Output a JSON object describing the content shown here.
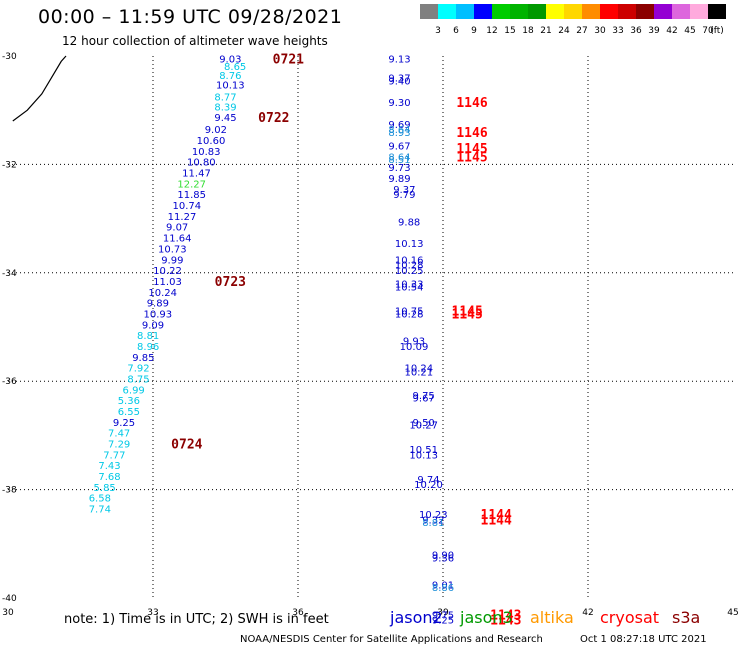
{
  "header": {
    "title": "00:00 – 11:59 UTC 09/28/2021",
    "subtitle": "12 hour collection of altimeter wave heights"
  },
  "colorbar": {
    "colors": [
      "#808080",
      "#00ffff",
      "#00bfff",
      "#0000ff",
      "#00cd00",
      "#00b300",
      "#009900",
      "#ffff00",
      "#ffd700",
      "#ff8c00",
      "#ff0000",
      "#cd0000",
      "#8b0000",
      "#9400d3",
      "#dd66dd",
      "#ffaadd",
      "#000000"
    ],
    "labels": [
      "3",
      "6",
      "9",
      "12",
      "15",
      "18",
      "21",
      "24",
      "27",
      "30",
      "33",
      "36",
      "39",
      "42",
      "45",
      "70",
      "(ft)"
    ]
  },
  "note": "note: 1) Time is in UTC; 2) SWH is in feet",
  "legend": [
    {
      "label": "jason2",
      "color": "#0000cc"
    },
    {
      "label": "jason3",
      "color": "#009900"
    },
    {
      "label": "altika",
      "color": "#ff9900"
    },
    {
      "label": "cryosat",
      "color": "#ff0000"
    },
    {
      "label": "s3a",
      "color": "#8b0000"
    }
  ],
  "footer": "NOAA/NESDIS Center for Satellite Applications and Research",
  "footer_time": "Oct  1 08:27:18 UTC 2021",
  "chart_data": {
    "type": "scatter",
    "xlim": [
      30,
      45
    ],
    "ylim": [
      -40,
      -30
    ],
    "xticks": [
      30,
      33,
      36,
      39,
      42,
      45
    ],
    "yticks": [
      -30,
      -32,
      -34,
      -36,
      -38,
      -40
    ],
    "grid": true,
    "colors": {
      "c6": "#00c8e6",
      "c9": "#1e90d8",
      "c12": "#0000cc",
      "c15": "#33dd33",
      "s3a": "#8b0000",
      "cryosat": "#ff0000",
      "coast": "#000000"
    },
    "coastline": [
      [
        30.1,
        -31.2
      ],
      [
        30.4,
        -31.0
      ],
      [
        30.7,
        -30.7
      ],
      [
        30.9,
        -30.4
      ],
      [
        31.1,
        -30.1
      ],
      [
        31.2,
        -30.0
      ]
    ],
    "points": [
      {
        "x": 34.6,
        "y": -30.05,
        "v": "9.03",
        "c": "c12"
      },
      {
        "x": 34.7,
        "y": -30.18,
        "v": "8.65",
        "c": "c6"
      },
      {
        "x": 34.6,
        "y": -30.35,
        "v": "8.76",
        "c": "c6"
      },
      {
        "x": 34.6,
        "y": -30.53,
        "v": "10.13",
        "c": "c12"
      },
      {
        "x": 34.5,
        "y": -30.75,
        "v": "8.77",
        "c": "c6"
      },
      {
        "x": 34.5,
        "y": -30.93,
        "v": "8.39",
        "c": "c6"
      },
      {
        "x": 34.5,
        "y": -31.13,
        "v": "9.45",
        "c": "c12"
      },
      {
        "x": 34.3,
        "y": -31.35,
        "v": "9.02",
        "c": "c12"
      },
      {
        "x": 34.2,
        "y": -31.55,
        "v": "10.60",
        "c": "c12"
      },
      {
        "x": 34.1,
        "y": -31.75,
        "v": "10.83",
        "c": "c12"
      },
      {
        "x": 34.0,
        "y": -31.95,
        "v": "10.80",
        "c": "c12"
      },
      {
        "x": 33.9,
        "y": -32.15,
        "v": "11.47",
        "c": "c12"
      },
      {
        "x": 33.8,
        "y": -32.35,
        "v": "12.27",
        "c": "c15"
      },
      {
        "x": 33.8,
        "y": -32.55,
        "v": "11.85",
        "c": "c12"
      },
      {
        "x": 33.7,
        "y": -32.75,
        "v": "10.74",
        "c": "c12"
      },
      {
        "x": 33.6,
        "y": -32.95,
        "v": "11.27",
        "c": "c12"
      },
      {
        "x": 33.5,
        "y": -33.15,
        "v": "9.07",
        "c": "c12"
      },
      {
        "x": 33.5,
        "y": -33.35,
        "v": "11.64",
        "c": "c12"
      },
      {
        "x": 33.4,
        "y": -33.55,
        "v": "10.73",
        "c": "c12"
      },
      {
        "x": 33.4,
        "y": -33.75,
        "v": "9.99",
        "c": "c12"
      },
      {
        "x": 33.3,
        "y": -33.95,
        "v": "10.22",
        "c": "c12"
      },
      {
        "x": 33.3,
        "y": -34.15,
        "v": "11.03",
        "c": "c12"
      },
      {
        "x": 33.2,
        "y": -34.35,
        "v": "10.24",
        "c": "c12"
      },
      {
        "x": 33.1,
        "y": -34.55,
        "v": "9.89",
        "c": "c12"
      },
      {
        "x": 33.1,
        "y": -34.75,
        "v": "10.93",
        "c": "c12"
      },
      {
        "x": 33.0,
        "y": -34.95,
        "v": "9.09",
        "c": "c12"
      },
      {
        "x": 32.9,
        "y": -35.15,
        "v": "8.81",
        "c": "c6"
      },
      {
        "x": 32.9,
        "y": -35.35,
        "v": "8.96",
        "c": "c6"
      },
      {
        "x": 32.8,
        "y": -35.55,
        "v": "9.85",
        "c": "c12"
      },
      {
        "x": 32.7,
        "y": -35.75,
        "v": "7.92",
        "c": "c6"
      },
      {
        "x": 32.7,
        "y": -35.95,
        "v": "8.75",
        "c": "c6"
      },
      {
        "x": 32.6,
        "y": -36.15,
        "v": "6.99",
        "c": "c6"
      },
      {
        "x": 32.5,
        "y": -36.35,
        "v": "5.36",
        "c": "c6"
      },
      {
        "x": 32.5,
        "y": -36.55,
        "v": "6.55",
        "c": "c6"
      },
      {
        "x": 32.4,
        "y": -36.75,
        "v": "9.25",
        "c": "c12"
      },
      {
        "x": 32.3,
        "y": -36.95,
        "v": "7.47",
        "c": "c6"
      },
      {
        "x": 32.3,
        "y": -37.15,
        "v": "7.29",
        "c": "c6"
      },
      {
        "x": 32.2,
        "y": -37.35,
        "v": "7.77",
        "c": "c6"
      },
      {
        "x": 32.1,
        "y": -37.55,
        "v": "7.43",
        "c": "c6"
      },
      {
        "x": 32.1,
        "y": -37.75,
        "v": "7.68",
        "c": "c6"
      },
      {
        "x": 32.0,
        "y": -37.95,
        "v": "5.85",
        "c": "c6"
      },
      {
        "x": 31.9,
        "y": -38.15,
        "v": "6.58",
        "c": "c6"
      },
      {
        "x": 31.9,
        "y": -38.35,
        "v": "7.74",
        "c": "c6"
      },
      {
        "x": 38.1,
        "y": -30.05,
        "v": "9.13",
        "c": "c12"
      },
      {
        "x": 38.1,
        "y": -30.4,
        "v": "9.37",
        "c": "c12"
      },
      {
        "x": 38.1,
        "y": -30.45,
        "v": "9.40",
        "c": "c12"
      },
      {
        "x": 38.1,
        "y": -30.85,
        "v": "9.30",
        "c": "c12"
      },
      {
        "x": 38.1,
        "y": -31.25,
        "v": "9.69",
        "c": "c12"
      },
      {
        "x": 38.1,
        "y": -31.35,
        "v": "8.64",
        "c": "c9"
      },
      {
        "x": 38.1,
        "y": -31.4,
        "v": "8.93",
        "c": "c9"
      },
      {
        "x": 38.1,
        "y": -31.65,
        "v": "9.67",
        "c": "c12"
      },
      {
        "x": 38.1,
        "y": -31.85,
        "v": "8.64",
        "c": "c9"
      },
      {
        "x": 38.1,
        "y": -31.9,
        "v": "8.51",
        "c": "c9"
      },
      {
        "x": 38.1,
        "y": -32.05,
        "v": "9.73",
        "c": "c12"
      },
      {
        "x": 38.1,
        "y": -32.25,
        "v": "9.89",
        "c": "c12"
      },
      {
        "x": 38.2,
        "y": -32.45,
        "v": "9.37",
        "c": "c12"
      },
      {
        "x": 38.2,
        "y": -32.55,
        "v": "9.79",
        "c": "c12"
      },
      {
        "x": 38.3,
        "y": -33.05,
        "v": "9.88",
        "c": "c12"
      },
      {
        "x": 38.3,
        "y": -33.45,
        "v": "10.13",
        "c": "c12"
      },
      {
        "x": 38.3,
        "y": -33.75,
        "v": "10.16",
        "c": "c12"
      },
      {
        "x": 38.3,
        "y": -33.85,
        "v": "10.28",
        "c": "c12"
      },
      {
        "x": 38.3,
        "y": -33.95,
        "v": "10.25",
        "c": "c12"
      },
      {
        "x": 38.3,
        "y": -34.2,
        "v": "10.33",
        "c": "c12"
      },
      {
        "x": 38.3,
        "y": -34.25,
        "v": "10.54",
        "c": "c12"
      },
      {
        "x": 38.3,
        "y": -34.7,
        "v": "10.75",
        "c": "c12"
      },
      {
        "x": 38.3,
        "y": -34.75,
        "v": "10.28",
        "c": "c12"
      },
      {
        "x": 38.4,
        "y": -35.25,
        "v": "9.93",
        "c": "c12"
      },
      {
        "x": 38.4,
        "y": -35.35,
        "v": "10.09",
        "c": "c12"
      },
      {
        "x": 38.5,
        "y": -35.75,
        "v": "10.24",
        "c": "c12"
      },
      {
        "x": 38.5,
        "y": -35.82,
        "v": "10.21",
        "c": "c12"
      },
      {
        "x": 38.6,
        "y": -36.25,
        "v": "9.75",
        "c": "c12"
      },
      {
        "x": 38.6,
        "y": -36.3,
        "v": "9.67",
        "c": "c12"
      },
      {
        "x": 38.6,
        "y": -36.75,
        "v": "9.50",
        "c": "c12"
      },
      {
        "x": 38.6,
        "y": -36.8,
        "v": "10.27",
        "c": "c12"
      },
      {
        "x": 38.6,
        "y": -37.25,
        "v": "10.51",
        "c": "c12"
      },
      {
        "x": 38.6,
        "y": -37.35,
        "v": "10.13",
        "c": "c12"
      },
      {
        "x": 38.7,
        "y": -37.8,
        "v": "9.74",
        "c": "c12"
      },
      {
        "x": 38.7,
        "y": -37.9,
        "v": "10.20",
        "c": "c12"
      },
      {
        "x": 38.8,
        "y": -38.45,
        "v": "10.23",
        "c": "c12"
      },
      {
        "x": 38.8,
        "y": -38.55,
        "v": "9.32",
        "c": "c12"
      },
      {
        "x": 38.8,
        "y": -38.6,
        "v": "8.81",
        "c": "c9"
      },
      {
        "x": 39.0,
        "y": -39.2,
        "v": "9.90",
        "c": "c12"
      },
      {
        "x": 39.0,
        "y": -39.25,
        "v": "9.36",
        "c": "c12"
      },
      {
        "x": 39.0,
        "y": -39.75,
        "v": "9.01",
        "c": "c12"
      },
      {
        "x": 39.0,
        "y": -39.8,
        "v": "8.86",
        "c": "c9"
      },
      {
        "x": 39.0,
        "y": -40.3,
        "v": "9.75",
        "c": "c12"
      },
      {
        "x": 39.0,
        "y": -40.4,
        "v": "9.25",
        "c": "c12"
      }
    ],
    "timestamps": [
      {
        "x": 35.8,
        "y": -30.05,
        "t": "0721",
        "c": "s3a"
      },
      {
        "x": 35.5,
        "y": -31.13,
        "t": "0722",
        "c": "s3a"
      },
      {
        "x": 34.6,
        "y": -34.15,
        "t": "0723",
        "c": "s3a"
      },
      {
        "x": 33.7,
        "y": -37.15,
        "t": "0724",
        "c": "s3a"
      },
      {
        "x": 39.6,
        "y": -30.85,
        "t": "1146",
        "c": "cryosat"
      },
      {
        "x": 39.6,
        "y": -31.4,
        "t": "1146",
        "c": "cryosat"
      },
      {
        "x": 39.6,
        "y": -31.7,
        "t": "1145",
        "c": "cryosat"
      },
      {
        "x": 39.6,
        "y": -31.85,
        "t": "1145",
        "c": "cryosat"
      },
      {
        "x": 39.5,
        "y": -34.7,
        "t": "1145",
        "c": "cryosat"
      },
      {
        "x": 39.5,
        "y": -34.75,
        "t": "1145",
        "c": "cryosat"
      },
      {
        "x": 40.1,
        "y": -38.45,
        "t": "1144",
        "c": "cryosat"
      },
      {
        "x": 40.1,
        "y": -38.55,
        "t": "1144",
        "c": "cryosat"
      },
      {
        "x": 40.3,
        "y": -40.3,
        "t": "1143",
        "c": "cryosat"
      },
      {
        "x": 40.3,
        "y": -40.4,
        "t": "1143",
        "c": "cryosat"
      }
    ]
  }
}
